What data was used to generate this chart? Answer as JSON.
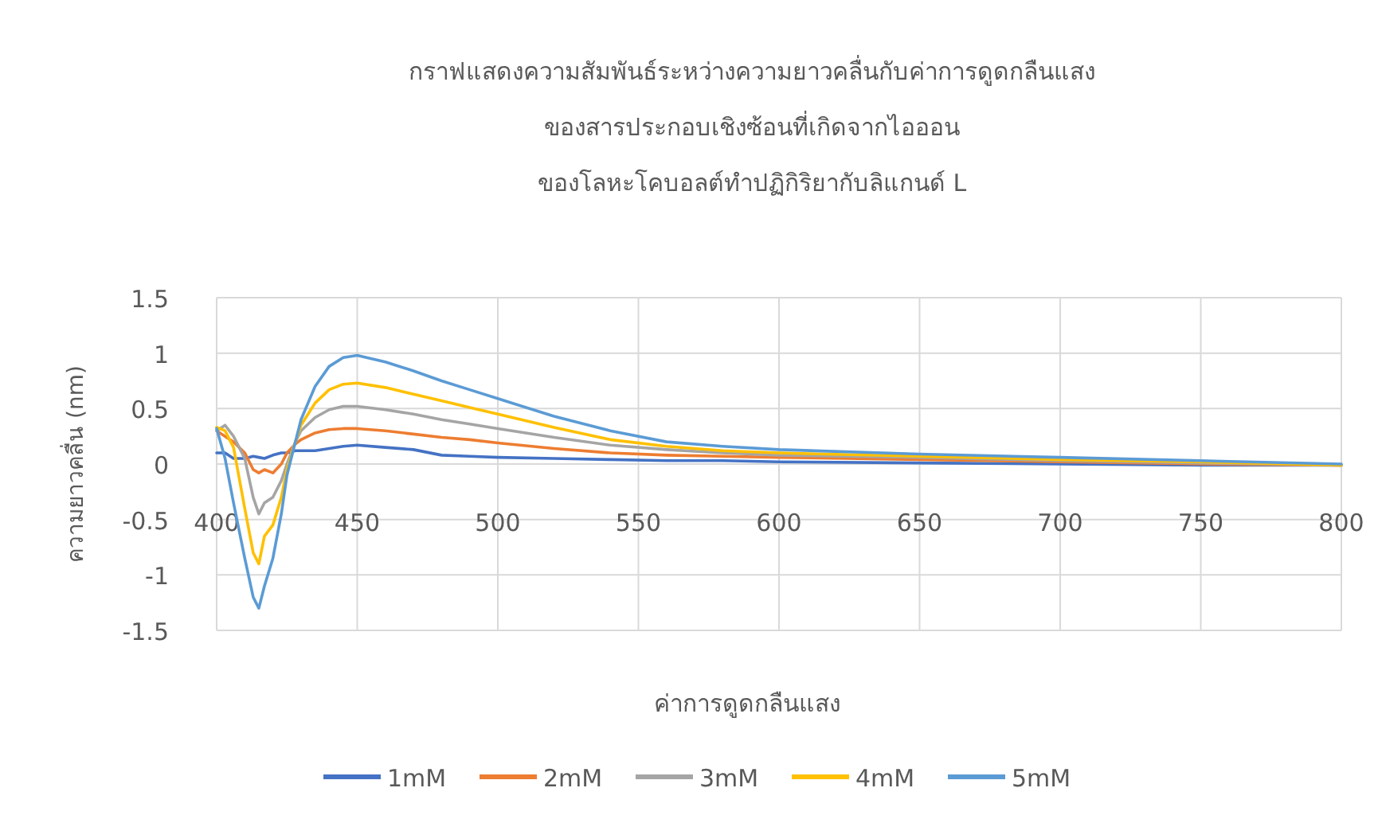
{
  "chart_data": {
    "type": "line",
    "title": "กราฟแสดงความสัมพันธ์ระหว่างความยาวคลื่นกับค่าการดูดกลืนแสง\nของสารประกอบเชิงซ้อนที่เกิดจากไอออน\nของโลหะโคบอลต์ทำปฏิกิริยากับลิแกนด์ L",
    "xlabel": "ค่าการดูดกลืนแสง",
    "ylabel": "ความยาวคลื่น (nm)",
    "x": [
      400,
      403,
      406,
      410,
      413,
      415,
      417,
      420,
      423,
      425,
      428,
      430,
      435,
      440,
      445,
      450,
      460,
      470,
      480,
      490,
      500,
      520,
      540,
      560,
      580,
      600,
      650,
      700,
      750,
      800
    ],
    "series": [
      {
        "name": "1mM",
        "color": "#4472c4",
        "values": [
          0.1,
          0.1,
          0.05,
          0.05,
          0.07,
          0.06,
          0.05,
          0.08,
          0.1,
          0.1,
          0.12,
          0.12,
          0.12,
          0.14,
          0.16,
          0.17,
          0.15,
          0.13,
          0.08,
          0.07,
          0.06,
          0.05,
          0.04,
          0.03,
          0.03,
          0.02,
          0.01,
          0.0,
          -0.01,
          -0.01
        ]
      },
      {
        "name": "2mM",
        "color": "#ed7d31",
        "values": [
          0.3,
          0.25,
          0.2,
          0.1,
          -0.05,
          -0.08,
          -0.05,
          -0.08,
          0.0,
          0.1,
          0.18,
          0.22,
          0.28,
          0.31,
          0.32,
          0.32,
          0.3,
          0.27,
          0.24,
          0.22,
          0.19,
          0.14,
          0.1,
          0.08,
          0.07,
          0.06,
          0.04,
          0.02,
          0.0,
          -0.01
        ]
      },
      {
        "name": "3mM",
        "color": "#a5a5a5",
        "values": [
          0.3,
          0.35,
          0.25,
          0.05,
          -0.3,
          -0.45,
          -0.35,
          -0.3,
          -0.15,
          0.0,
          0.2,
          0.3,
          0.42,
          0.49,
          0.52,
          0.52,
          0.49,
          0.45,
          0.4,
          0.36,
          0.32,
          0.24,
          0.17,
          0.13,
          0.1,
          0.08,
          0.06,
          0.03,
          0.01,
          -0.01
        ]
      },
      {
        "name": "4mM",
        "color": "#ffc000",
        "values": [
          0.33,
          0.3,
          0.15,
          -0.4,
          -0.8,
          -0.9,
          -0.65,
          -0.55,
          -0.3,
          -0.05,
          0.2,
          0.35,
          0.55,
          0.67,
          0.72,
          0.73,
          0.69,
          0.63,
          0.57,
          0.51,
          0.45,
          0.33,
          0.22,
          0.16,
          0.12,
          0.1,
          0.07,
          0.04,
          0.02,
          -0.01
        ]
      },
      {
        "name": "5mM",
        "color": "#5b9bd5",
        "values": [
          0.32,
          0.05,
          -0.35,
          -0.85,
          -1.2,
          -1.3,
          -1.1,
          -0.85,
          -0.45,
          -0.1,
          0.2,
          0.4,
          0.7,
          0.88,
          0.96,
          0.98,
          0.92,
          0.84,
          0.75,
          0.67,
          0.59,
          0.43,
          0.3,
          0.2,
          0.16,
          0.13,
          0.09,
          0.06,
          0.03,
          0.0
        ]
      }
    ],
    "xlim": [
      400,
      800
    ],
    "xticks": [
      400,
      450,
      500,
      550,
      600,
      650,
      700,
      750,
      800
    ],
    "ylim": [
      -1.5,
      1.5
    ],
    "yticks": [
      -1.5,
      -1,
      -0.5,
      0,
      0.5,
      1,
      1.5
    ],
    "grid": true,
    "legend": "bottom",
    "marker": "none",
    "line_style": "solid"
  }
}
